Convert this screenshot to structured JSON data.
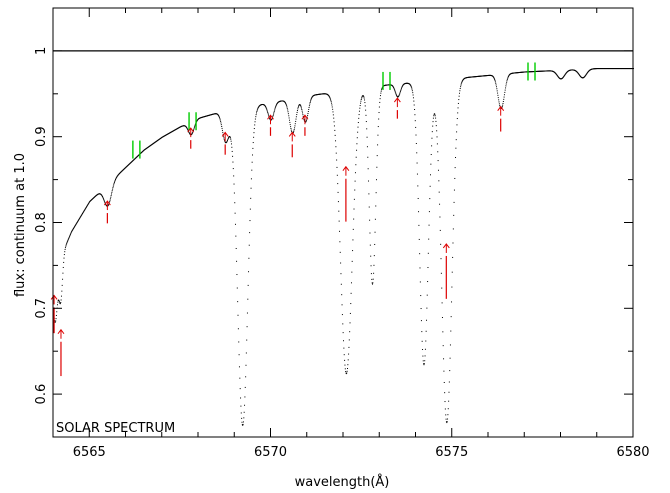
{
  "chart_data": {
    "type": "scatter",
    "xlabel": "wavelength(Å)",
    "ylabel": "flux: continuum at 1.0",
    "annotation": "SOLAR SPECTRUM",
    "xlim": [
      6564,
      6580
    ],
    "ylim": [
      0.55,
      1.05
    ],
    "xticks": [
      6565,
      6570,
      6575,
      6580
    ],
    "xtick_labels": [
      "6565",
      "6570",
      "6575",
      "6580"
    ],
    "yticks": [
      0.6,
      0.7,
      0.8,
      0.9,
      1.0
    ],
    "ytick_labels": [
      "0.6",
      "0.7",
      "0.8",
      "0.9",
      "1"
    ],
    "continuum_level": 1.0,
    "spectrum_color": "#000000",
    "continuum_marker_color": "#00cc00",
    "line_marker_color": "#dd0000",
    "continuum_profile": [
      [
        6564.0,
        0.74
      ],
      [
        6564.2,
        0.76
      ],
      [
        6564.5,
        0.79
      ],
      [
        6565.0,
        0.825
      ],
      [
        6565.5,
        0.845
      ],
      [
        6566.0,
        0.865
      ],
      [
        6566.5,
        0.885
      ],
      [
        6567.0,
        0.9
      ],
      [
        6567.5,
        0.912
      ],
      [
        6568.0,
        0.922
      ],
      [
        6568.5,
        0.928
      ],
      [
        6569.0,
        0.932
      ],
      [
        6569.5,
        0.937
      ],
      [
        6570.0,
        0.94
      ],
      [
        6570.5,
        0.944
      ],
      [
        6571.0,
        0.948
      ],
      [
        6571.5,
        0.951
      ],
      [
        6572.0,
        0.954
      ],
      [
        6572.5,
        0.957
      ],
      [
        6573.0,
        0.96
      ],
      [
        6573.5,
        0.962
      ],
      [
        6574.0,
        0.964
      ],
      [
        6574.5,
        0.966
      ],
      [
        6575.0,
        0.968
      ],
      [
        6575.5,
        0.97
      ],
      [
        6576.0,
        0.972
      ],
      [
        6576.5,
        0.974
      ],
      [
        6577.0,
        0.976
      ],
      [
        6577.5,
        0.977
      ],
      [
        6578.0,
        0.978
      ],
      [
        6578.5,
        0.979
      ],
      [
        6579.0,
        0.98
      ],
      [
        6579.5,
        0.98
      ],
      [
        6580.0,
        0.98
      ]
    ],
    "absorption_lines": [
      {
        "x": 6564.05,
        "depth": 0.06,
        "w": 0.06
      },
      {
        "x": 6564.2,
        "depth": 0.05,
        "w": 0.05
      },
      {
        "x": 6565.5,
        "depth": 0.025,
        "w": 0.1
      },
      {
        "x": 6567.8,
        "depth": 0.015,
        "w": 0.08
      },
      {
        "x": 6568.75,
        "depth": 0.035,
        "w": 0.09
      },
      {
        "x": 6569.22,
        "depth": 0.37,
        "w": 0.14
      },
      {
        "x": 6570.0,
        "depth": 0.02,
        "w": 0.08
      },
      {
        "x": 6570.6,
        "depth": 0.04,
        "w": 0.09
      },
      {
        "x": 6570.95,
        "depth": 0.03,
        "w": 0.08
      },
      {
        "x": 6572.08,
        "depth": 0.33,
        "w": 0.16
      },
      {
        "x": 6572.8,
        "depth": 0.23,
        "w": 0.09
      },
      {
        "x": 6573.5,
        "depth": 0.015,
        "w": 0.07
      },
      {
        "x": 6574.22,
        "depth": 0.33,
        "w": 0.12
      },
      {
        "x": 6574.85,
        "depth": 0.4,
        "w": 0.14
      },
      {
        "x": 6576.35,
        "depth": 0.04,
        "w": 0.09
      },
      {
        "x": 6578.0,
        "depth": 0.01,
        "w": 0.1
      },
      {
        "x": 6578.6,
        "depth": 0.01,
        "w": 0.1
      }
    ],
    "continuum_markers": [
      {
        "x": 6566.3,
        "y": 0.885
      },
      {
        "x": 6567.85,
        "y": 0.918
      },
      {
        "x": 6573.2,
        "y": 0.965
      },
      {
        "x": 6577.2,
        "y": 0.976
      }
    ],
    "line_markers": [
      {
        "x": 6564.03,
        "y": 0.715,
        "bar": 0.03
      },
      {
        "x": 6564.22,
        "y": 0.675,
        "bar": 0.04
      },
      {
        "x": 6565.5,
        "y": 0.825,
        "bar": 0.012
      },
      {
        "x": 6567.8,
        "y": 0.91,
        "bar": 0.01
      },
      {
        "x": 6568.75,
        "y": 0.905,
        "bar": 0.012
      },
      {
        "x": 6570.0,
        "y": 0.925,
        "bar": 0.01
      },
      {
        "x": 6570.6,
        "y": 0.905,
        "bar": 0.015
      },
      {
        "x": 6570.95,
        "y": 0.925,
        "bar": 0.01
      },
      {
        "x": 6572.08,
        "y": 0.865,
        "bar": 0.05
      },
      {
        "x": 6573.5,
        "y": 0.945,
        "bar": 0.01
      },
      {
        "x": 6574.85,
        "y": 0.775,
        "bar": 0.05
      },
      {
        "x": 6576.35,
        "y": 0.935,
        "bar": 0.015
      }
    ]
  }
}
